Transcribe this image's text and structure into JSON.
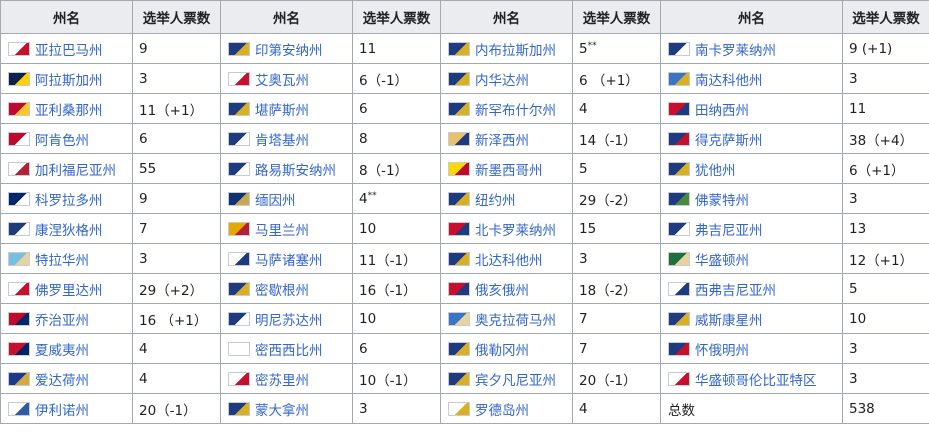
{
  "headers": [
    "州名",
    "选举人票数",
    "州名",
    "选举人票数",
    "州名",
    "选举人票数",
    "州名",
    "选举人票数"
  ],
  "columns": [
    [
      {
        "name": "亚拉巴马州",
        "votes": "9",
        "flag": [
          "#ffffff",
          "#c8102e"
        ]
      },
      {
        "name": "阿拉斯加州",
        "votes": "3",
        "flag": [
          "#0f204b",
          "#ffd100"
        ]
      },
      {
        "name": "亚利桑那州",
        "votes": "11（+1）",
        "flag": [
          "#bf0a30",
          "#ffc726"
        ]
      },
      {
        "name": "阿肯色州",
        "votes": "6",
        "flag": [
          "#bf0a30",
          "#ffffff"
        ]
      },
      {
        "name": "加利福尼亚州",
        "votes": "55",
        "flag": [
          "#ffffff",
          "#b22234"
        ]
      },
      {
        "name": "科罗拉多州",
        "votes": "9",
        "flag": [
          "#002868",
          "#ffffff"
        ]
      },
      {
        "name": "康涅狄格州",
        "votes": "7",
        "flag": [
          "#1e3b7a",
          "#ffffff"
        ]
      },
      {
        "name": "特拉华州",
        "votes": "3",
        "flag": [
          "#78bfdf",
          "#e8d2a0"
        ]
      },
      {
        "name": "佛罗里达州",
        "votes": "29（+2）",
        "flag": [
          "#ffffff",
          "#c8102e"
        ]
      },
      {
        "name": "乔治亚州",
        "votes": "16 （+1）",
        "flag": [
          "#bf0a30",
          "#002868"
        ]
      },
      {
        "name": "夏威夷州",
        "votes": "4",
        "flag": [
          "#c8102e",
          "#012169"
        ]
      },
      {
        "name": "爱达荷州",
        "votes": "4",
        "flag": [
          "#1c3a8c",
          "#d4a843"
        ]
      },
      {
        "name": "伊利诺州",
        "votes": "20（-1）",
        "flag": [
          "#ffffff",
          "#2f5aa8"
        ]
      }
    ],
    [
      {
        "name": "印第安纳州",
        "votes": "11",
        "flag": [
          "#1e3b80",
          "#d9b021"
        ]
      },
      {
        "name": "艾奥瓦州",
        "votes": "6（-1）",
        "flag": [
          "#ffffff",
          "#c8102e"
        ]
      },
      {
        "name": "堪萨斯州",
        "votes": "6",
        "flag": [
          "#1e3b80",
          "#d9b021"
        ]
      },
      {
        "name": "肯塔基州",
        "votes": "8",
        "flag": [
          "#1e3b80",
          "#ffffff"
        ]
      },
      {
        "name": "路易斯安纳州",
        "votes": "8（-1）",
        "flag": [
          "#1e3b80",
          "#ffffff"
        ]
      },
      {
        "name": "缅因州",
        "votes": "4",
        "note": "**",
        "flag": [
          "#0f3273",
          "#c8a951"
        ]
      },
      {
        "name": "马里兰州",
        "votes": "10",
        "flag": [
          "#e6a800",
          "#b22234"
        ]
      },
      {
        "name": "马萨诸塞州",
        "votes": "11（-1）",
        "flag": [
          "#ffffff",
          "#1e3b80"
        ]
      },
      {
        "name": "密歇根州",
        "votes": "16（-1）",
        "flag": [
          "#1e3b80",
          "#d9b021"
        ]
      },
      {
        "name": "明尼苏达州",
        "votes": "10",
        "flag": [
          "#1e3b80",
          "#ffffff"
        ]
      },
      {
        "name": "密西西比州",
        "votes": "6",
        "flag": [
          "#ffffff",
          "#ffffff"
        ]
      },
      {
        "name": "密苏里州",
        "votes": "10（-1）",
        "flag": [
          "#ffffff",
          "#c8102e"
        ]
      },
      {
        "name": "蒙大拿州",
        "votes": "3",
        "flag": [
          "#1e3b80",
          "#d9b021"
        ]
      }
    ],
    [
      {
        "name": "内布拉斯加州",
        "votes": "5",
        "note": "**",
        "flag": [
          "#1e3b80",
          "#d9b021"
        ]
      },
      {
        "name": "内华达州",
        "votes": "6 （+1）",
        "flag": [
          "#1e3b80",
          "#d9b021"
        ]
      },
      {
        "name": "新罕布什尔州",
        "votes": "4",
        "flag": [
          "#1e3b80",
          "#d9b021"
        ]
      },
      {
        "name": "新泽西州",
        "votes": "14（-1）",
        "flag": [
          "#e8c16a",
          "#1e3b80"
        ]
      },
      {
        "name": "新墨西哥州",
        "votes": "5",
        "flag": [
          "#ffd700",
          "#bf0a30"
        ]
      },
      {
        "name": "纽约州",
        "votes": "29（-2）",
        "flag": [
          "#1e3b80",
          "#d9b021"
        ]
      },
      {
        "name": "北卡罗莱纳州",
        "votes": "15",
        "flag": [
          "#c8102e",
          "#1e3b80"
        ]
      },
      {
        "name": "北达科他州",
        "votes": "3",
        "flag": [
          "#1e3b80",
          "#d9b021"
        ]
      },
      {
        "name": "俄亥俄州",
        "votes": "18（-2）",
        "flag": [
          "#c8102e",
          "#1e3b80"
        ]
      },
      {
        "name": "奥克拉荷马州",
        "votes": "7",
        "flag": [
          "#3a75c4",
          "#e8d2a0"
        ]
      },
      {
        "name": "俄勒冈州",
        "votes": "7",
        "flag": [
          "#1e3b80",
          "#d9b021"
        ]
      },
      {
        "name": "宾夕凡尼亚州",
        "votes": "20（-1）",
        "flag": [
          "#1e3b80",
          "#d9b021"
        ]
      },
      {
        "name": "罗德岛州",
        "votes": "4",
        "flag": [
          "#ffffff",
          "#d9b021"
        ]
      }
    ],
    [
      {
        "name": "南卡罗莱纳州",
        "votes": "9 (+1)",
        "flag": [
          "#1e3b80",
          "#ffffff"
        ]
      },
      {
        "name": "南达科他州",
        "votes": "3",
        "flag": [
          "#3a75c4",
          "#d9b021"
        ]
      },
      {
        "name": "田纳西州",
        "votes": "11",
        "flag": [
          "#c8102e",
          "#1e3b80"
        ]
      },
      {
        "name": "得克萨斯州",
        "votes": "38（+4）",
        "flag": [
          "#1e3b80",
          "#c8102e"
        ]
      },
      {
        "name": "犹他州",
        "votes": "6（+1）",
        "flag": [
          "#1e3b80",
          "#d9b021"
        ]
      },
      {
        "name": "佛蒙特州",
        "votes": "3",
        "flag": [
          "#1e3b80",
          "#4a8a3a"
        ]
      },
      {
        "name": "弗吉尼亚州",
        "votes": "13",
        "flag": [
          "#1e3b80",
          "#ffffff"
        ]
      },
      {
        "name": "华盛顿州",
        "votes": "12（+1）",
        "flag": [
          "#1f6e3c",
          "#e8d2a0"
        ]
      },
      {
        "name": "西弗吉尼亚州",
        "votes": "5",
        "flag": [
          "#ffffff",
          "#1e3b80"
        ]
      },
      {
        "name": "威斯康星州",
        "votes": "10",
        "flag": [
          "#1e3b80",
          "#d9b021"
        ]
      },
      {
        "name": "怀俄明州",
        "votes": "3",
        "flag": [
          "#1e3b80",
          "#c8102e"
        ]
      },
      {
        "name": "华盛顿哥伦比亚特区",
        "votes": "3",
        "flag": [
          "#ffffff",
          "#c8102e"
        ]
      },
      {
        "name": "总数",
        "votes": "538",
        "plain": true
      }
    ]
  ]
}
